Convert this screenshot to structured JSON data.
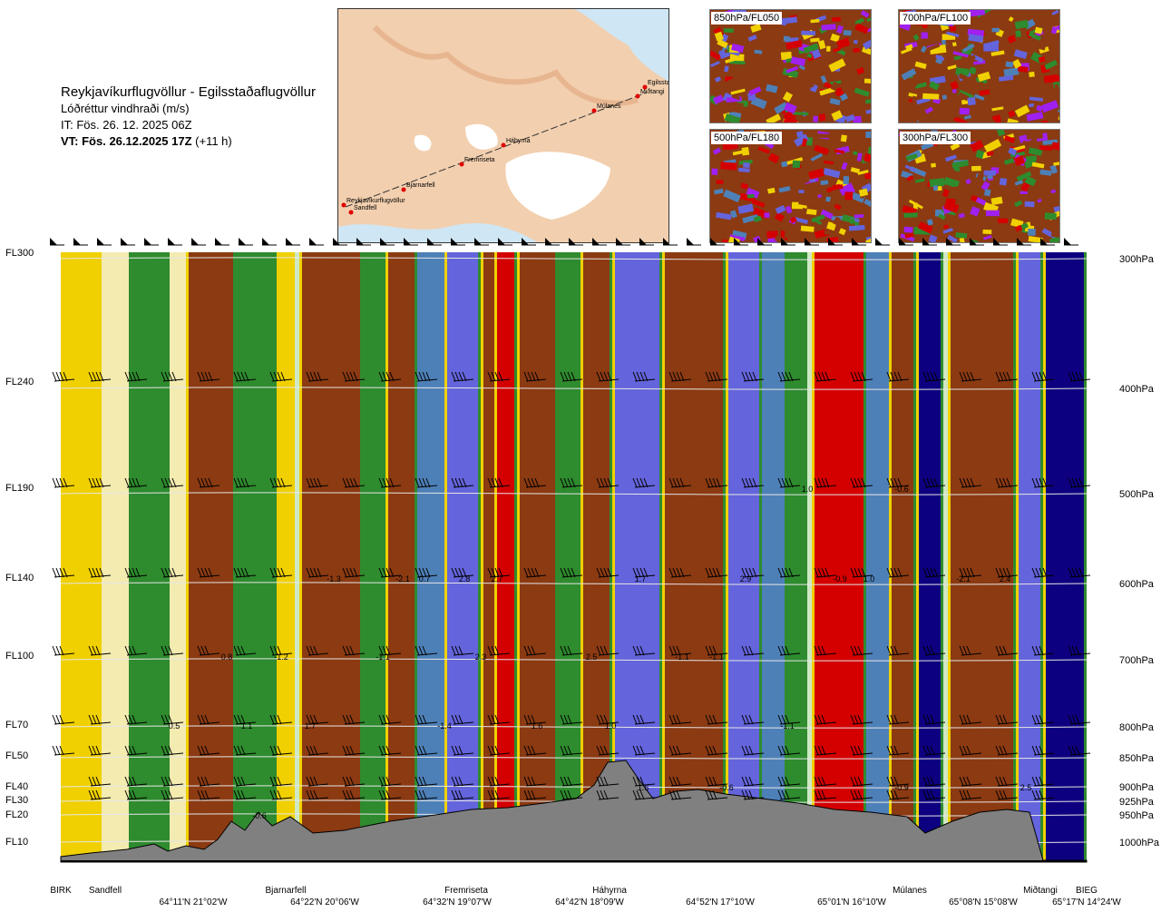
{
  "header": {
    "title": "Reykjavíkurflugvöllur - Egilsstaðaflugvöllur",
    "subtitle": "Lóðréttur vindhraði (m/s)",
    "issue_time": "IT: Fös. 26. 12. 2025 06Z",
    "valid_time_bold": "VT: Fös. 26.12.2025 17Z",
    "valid_time_offset": "(+11 h)"
  },
  "map": {
    "waypoints": [
      "Reykjavíkurflugvöllur",
      "Sandfell",
      "Bjarnarfell",
      "Fremriseta",
      "Háhyrna",
      "Múlanes",
      "Miðtangi",
      "Egilsstaðir"
    ]
  },
  "thumbnails": [
    {
      "label": "850hPa/FL050"
    },
    {
      "label": "700hPa/FL100"
    },
    {
      "label": "500hPa/FL180"
    },
    {
      "label": "300hPa/FL300"
    }
  ],
  "colors": {
    "strong_down": "#0d0080",
    "mod_down": "#6464dc",
    "weak_down": "#4e80b8",
    "neutral_green": "#2e8b2e",
    "weak_up": "#f0d000",
    "mod_up": "#8b3a12",
    "strong_up": "#d40000",
    "terrain": "#808080"
  },
  "chart_data": {
    "type": "heatmap",
    "title": "Lóðréttur vindhraði (m/s)",
    "y_left_labels": [
      "FL300",
      "FL240",
      "FL190",
      "FL140",
      "FL100",
      "FL70",
      "FL50",
      "FL40",
      "FL30",
      "FL20",
      "FL10"
    ],
    "y_right_labels": [
      "300hPa",
      "400hPa",
      "500hPa",
      "600hPa",
      "700hPa",
      "800hPa",
      "850hPa",
      "900hPa",
      "925hPa",
      "950hPa",
      "1000hPa"
    ],
    "x_waypoints": [
      "BIRK",
      "Sandfell",
      "Bjarnarfell",
      "Fremriseta",
      "Háhyrna",
      "Múlanes",
      "Miðtangi",
      "BIEG"
    ],
    "x_coordinates": [
      "64°11'N 21°02'W",
      "64°22'N 20°06'W",
      "64°32'N 19°07'W",
      "64°42'N 18°09'W",
      "64°52'N 17°10'W",
      "65°01'N 16°10'W",
      "65°08'N 15°08'W",
      "65°17'N 14°24'W"
    ],
    "value_labels": [
      {
        "text": "0.8",
        "level": "FL100"
      },
      {
        "text": "-1.2",
        "level": "FL100"
      },
      {
        "text": "-1.1",
        "level": "FL100"
      },
      {
        "text": "2.3",
        "level": "FL100"
      },
      {
        "text": "2.5",
        "level": "FL100"
      },
      {
        "text": "-1.1",
        "level": "FL100"
      },
      {
        "text": "-1.1",
        "level": "FL100"
      },
      {
        "text": "-1.3",
        "level": "FL140"
      },
      {
        "text": "-2.1",
        "level": "FL140"
      },
      {
        "text": "0.7",
        "level": "FL140"
      },
      {
        "text": "2.8",
        "level": "FL140"
      },
      {
        "text": "2.7",
        "level": "FL140"
      },
      {
        "text": "1.7",
        "level": "FL140"
      },
      {
        "text": "2.9",
        "level": "FL140"
      },
      {
        "text": "-0.9",
        "level": "FL140"
      },
      {
        "text": "1.0",
        "level": "FL140"
      },
      {
        "text": "-2.1",
        "level": "FL140"
      },
      {
        "text": "2.4",
        "level": "FL140"
      },
      {
        "text": "1.0",
        "level": "FL190"
      },
      {
        "text": "-0.6",
        "level": "FL190"
      },
      {
        "text": "0.5",
        "level": "FL70"
      },
      {
        "text": "1.1",
        "level": "FL70"
      },
      {
        "text": "1.7",
        "level": "FL70"
      },
      {
        "text": "-1.4",
        "level": "FL70"
      },
      {
        "text": "1.6",
        "level": "FL70"
      },
      {
        "text": "1.0",
        "level": "FL70"
      },
      {
        "text": "-1.1",
        "level": "FL70"
      },
      {
        "text": "-0.6",
        "level": "FL20"
      },
      {
        "text": "1.6",
        "level": "FL40"
      },
      {
        "text": "-0.6",
        "level": "FL40"
      },
      {
        "text": "-0.9",
        "level": "FL40"
      },
      {
        "text": "2.5",
        "level": "FL40"
      }
    ],
    "legend": "none",
    "grid": false
  }
}
